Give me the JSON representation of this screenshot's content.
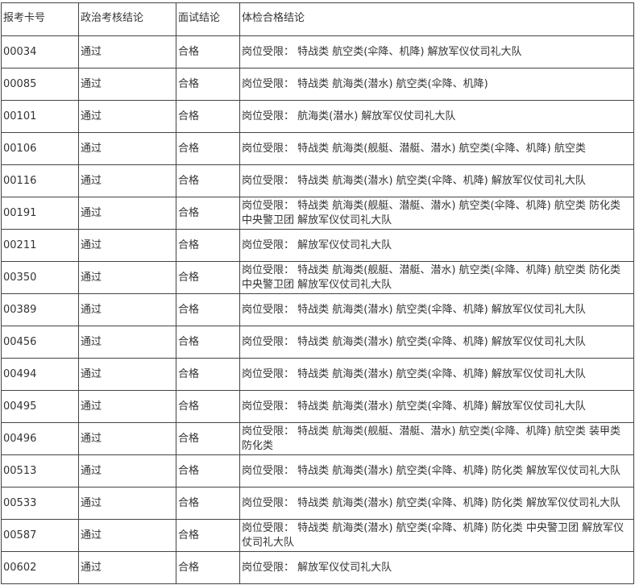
{
  "table": {
    "headers": [
      "报考卡号",
      "政治考核结论",
      "面试结论",
      "体检合格结论"
    ],
    "rows": [
      [
        "00034",
        "通过",
        "合格",
        "岗位受限： 特战类 航空类(伞降、机降) 解放军仪仗司礼大队"
      ],
      [
        "00085",
        "通过",
        "合格",
        "岗位受限： 特战类 航海类(潜水) 航空类(伞降、机降)"
      ],
      [
        "00101",
        "通过",
        "合格",
        "岗位受限： 航海类(潜水) 解放军仪仗司礼大队"
      ],
      [
        "00106",
        "通过",
        "合格",
        "岗位受限： 特战类 航海类(舰艇、潜艇、潜水) 航空类(伞降、机降) 航空类"
      ],
      [
        "00116",
        "通过",
        "合格",
        "岗位受限： 特战类 航海类(潜水) 航空类(伞降、机降) 解放军仪仗司礼大队"
      ],
      [
        "00191",
        "通过",
        "合格",
        "岗位受限： 特战类 航海类(舰艇、潜艇、潜水) 航空类(伞降、机降) 航空类 防化类  中央警卫团 解放军仪仗司礼大队"
      ],
      [
        "00211",
        "通过",
        "合格",
        "岗位受限： 解放军仪仗司礼大队"
      ],
      [
        "00350",
        "通过",
        "合格",
        "岗位受限： 特战类 航海类(舰艇、潜艇、潜水) 航空类(伞降、机降) 航空类 防化类  中央警卫团 解放军仪仗司礼大队"
      ],
      [
        "00389",
        "通过",
        "合格",
        "岗位受限： 特战类 航海类(潜水) 航空类(伞降、机降) 解放军仪仗司礼大队"
      ],
      [
        "00456",
        "通过",
        "合格",
        "岗位受限： 特战类 航海类(潜水) 航空类(伞降、机降) 解放军仪仗司礼大队"
      ],
      [
        "00494",
        "通过",
        "合格",
        "岗位受限： 特战类 航海类(潜水) 航空类(伞降、机降) 解放军仪仗司礼大队"
      ],
      [
        "00495",
        "通过",
        "合格",
        "岗位受限： 特战类 航海类(潜水) 航空类(伞降、机降) 解放军仪仗司礼大队"
      ],
      [
        "00496",
        "通过",
        "合格",
        "岗位受限： 特战类 航海类(舰艇、潜艇、潜水) 航空类(伞降、机降) 航空类 装甲类 防化类"
      ],
      [
        "00513",
        "通过",
        "合格",
        "岗位受限： 特战类 航海类(潜水) 航空类(伞降、机降) 防化类 解放军仪仗司礼大队"
      ],
      [
        "00533",
        "通过",
        "合格",
        "岗位受限： 特战类 航海类(潜水) 航空类(伞降、机降) 防化类 解放军仪仗司礼大队"
      ],
      [
        "00587",
        "通过",
        "合格",
        "岗位受限： 特战类 航海类(潜水) 航空类(伞降、机降) 防化类  中央警卫团 解放军仪仗司礼大队"
      ],
      [
        "00602",
        "通过",
        "合格",
        "岗位受限： 解放军仪仗司礼大队"
      ]
    ]
  }
}
